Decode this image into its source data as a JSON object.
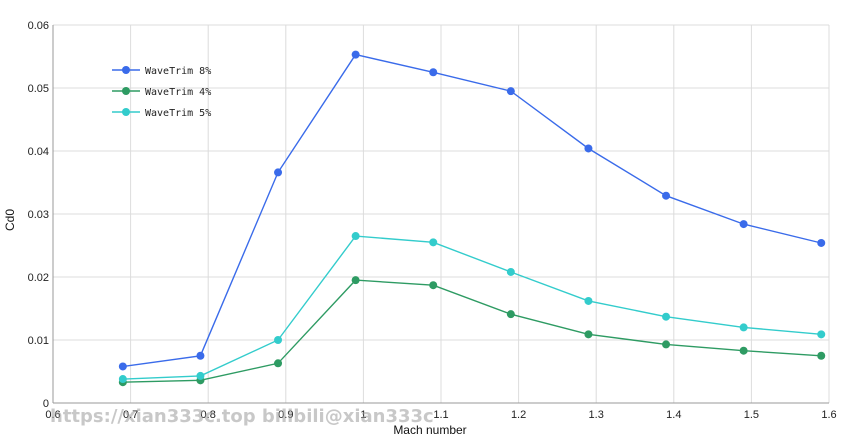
{
  "chart_data": {
    "type": "line",
    "title": "",
    "xlabel": "Mach number",
    "ylabel": "Cd0",
    "xlim": [
      0.6,
      1.6
    ],
    "ylim": [
      0,
      0.06
    ],
    "xticks": [
      "0.6",
      "0.7",
      "0.8",
      "0.9",
      "1",
      "1.1",
      "1.2",
      "1.3",
      "1.4",
      "1.5",
      "1.6"
    ],
    "yticks": [
      "0",
      "0.01",
      "0.02",
      "0.03",
      "0.04",
      "0.05",
      "0.06"
    ],
    "grid": true,
    "legend_position": "top-left",
    "series": [
      {
        "name": "WaveTrim 8%",
        "color": "#3a6bea",
        "x": [
          0.69,
          0.79,
          0.89,
          0.99,
          1.09,
          1.19,
          1.29,
          1.39,
          1.49,
          1.59
        ],
        "y": [
          0.0058,
          0.0075,
          0.0366,
          0.0553,
          0.0525,
          0.0495,
          0.0404,
          0.0329,
          0.0284,
          0.0254
        ]
      },
      {
        "name": "WaveTrim 4%",
        "color": "#2e9b63",
        "x": [
          0.69,
          0.79,
          0.89,
          0.99,
          1.09,
          1.19,
          1.29,
          1.39,
          1.49,
          1.59
        ],
        "y": [
          0.0033,
          0.0036,
          0.0063,
          0.0195,
          0.0187,
          0.0141,
          0.0109,
          0.0093,
          0.0083,
          0.0075
        ]
      },
      {
        "name": "WaveTrim 5%",
        "color": "#33cccc",
        "x": [
          0.69,
          0.79,
          0.89,
          0.99,
          1.09,
          1.19,
          1.29,
          1.39,
          1.49,
          1.59
        ],
        "y": [
          0.0038,
          0.0043,
          0.01,
          0.0265,
          0.0255,
          0.0208,
          0.0162,
          0.0137,
          0.012,
          0.0109
        ]
      }
    ]
  },
  "watermark": "https://xian333c.top bilibili@xian333c"
}
